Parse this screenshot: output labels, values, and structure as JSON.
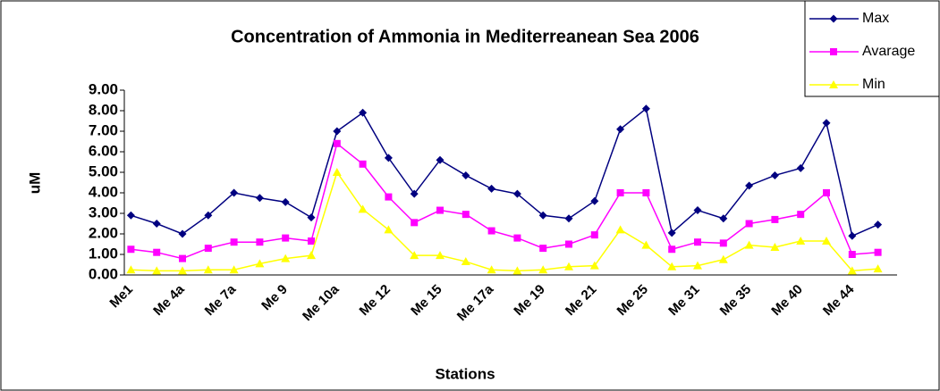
{
  "chart_data": {
    "type": "line",
    "title": "Concentration of Ammonia in Mediterreanean Sea 2006",
    "x_label": "Stations",
    "y_label": "uM",
    "categories": [
      "Me1",
      null,
      "Me 4a",
      null,
      "Me 7a",
      null,
      "Me 9",
      null,
      "Me 10a",
      null,
      "Me 12",
      null,
      "Me 15",
      null,
      "Me 17a",
      null,
      "Me 19",
      null,
      "Me 21",
      null,
      "Me 25",
      null,
      "Me 31",
      null,
      "Me 35",
      null,
      "Me 40",
      null,
      "Me 44",
      null
    ],
    "series": [
      {
        "name": "Max",
        "color": "#000080",
        "marker": "diamond",
        "values": [
          2.9,
          2.5,
          2.0,
          2.9,
          4.0,
          3.75,
          3.55,
          2.8,
          7.0,
          7.9,
          5.7,
          3.95,
          5.6,
          4.85,
          4.2,
          3.95,
          2.9,
          2.75,
          3.6,
          7.1,
          8.1,
          2.05,
          3.15,
          2.75,
          4.35,
          4.85,
          5.2,
          7.4,
          1.9,
          2.45
        ]
      },
      {
        "name": "Avarage",
        "color": "#ff00ff",
        "marker": "square",
        "values": [
          1.25,
          1.1,
          0.8,
          1.3,
          1.6,
          1.6,
          1.8,
          1.65,
          6.4,
          5.4,
          3.8,
          2.55,
          3.15,
          2.95,
          2.15,
          1.8,
          1.3,
          1.5,
          1.95,
          4.0,
          4.0,
          1.25,
          1.6,
          1.55,
          2.5,
          2.7,
          2.95,
          4.0,
          1.0,
          1.1
        ]
      },
      {
        "name": "Min",
        "color": "#ffff00",
        "marker": "triangle",
        "values": [
          0.25,
          0.2,
          0.2,
          0.25,
          0.25,
          0.55,
          0.8,
          0.95,
          5.0,
          3.2,
          2.2,
          0.95,
          0.95,
          0.65,
          0.25,
          0.2,
          0.25,
          0.4,
          0.45,
          2.2,
          1.45,
          0.4,
          0.45,
          0.75,
          1.45,
          1.35,
          1.65,
          1.65,
          0.2,
          0.3
        ]
      }
    ],
    "ylim": [
      0,
      9
    ],
    "yticks": [
      {
        "value": 0,
        "label": "0.00"
      },
      {
        "value": 1,
        "label": "1.00"
      },
      {
        "value": 2,
        "label": "2.00"
      },
      {
        "value": 3,
        "label": "3.00"
      },
      {
        "value": 4,
        "label": "4.00"
      },
      {
        "value": 5,
        "label": "5.00"
      },
      {
        "value": 6,
        "label": "6.00"
      },
      {
        "value": 7,
        "label": "7.00"
      },
      {
        "value": 8,
        "label": "8.00"
      },
      {
        "value": 9,
        "label": "9.00"
      }
    ],
    "legend": "top-right"
  }
}
